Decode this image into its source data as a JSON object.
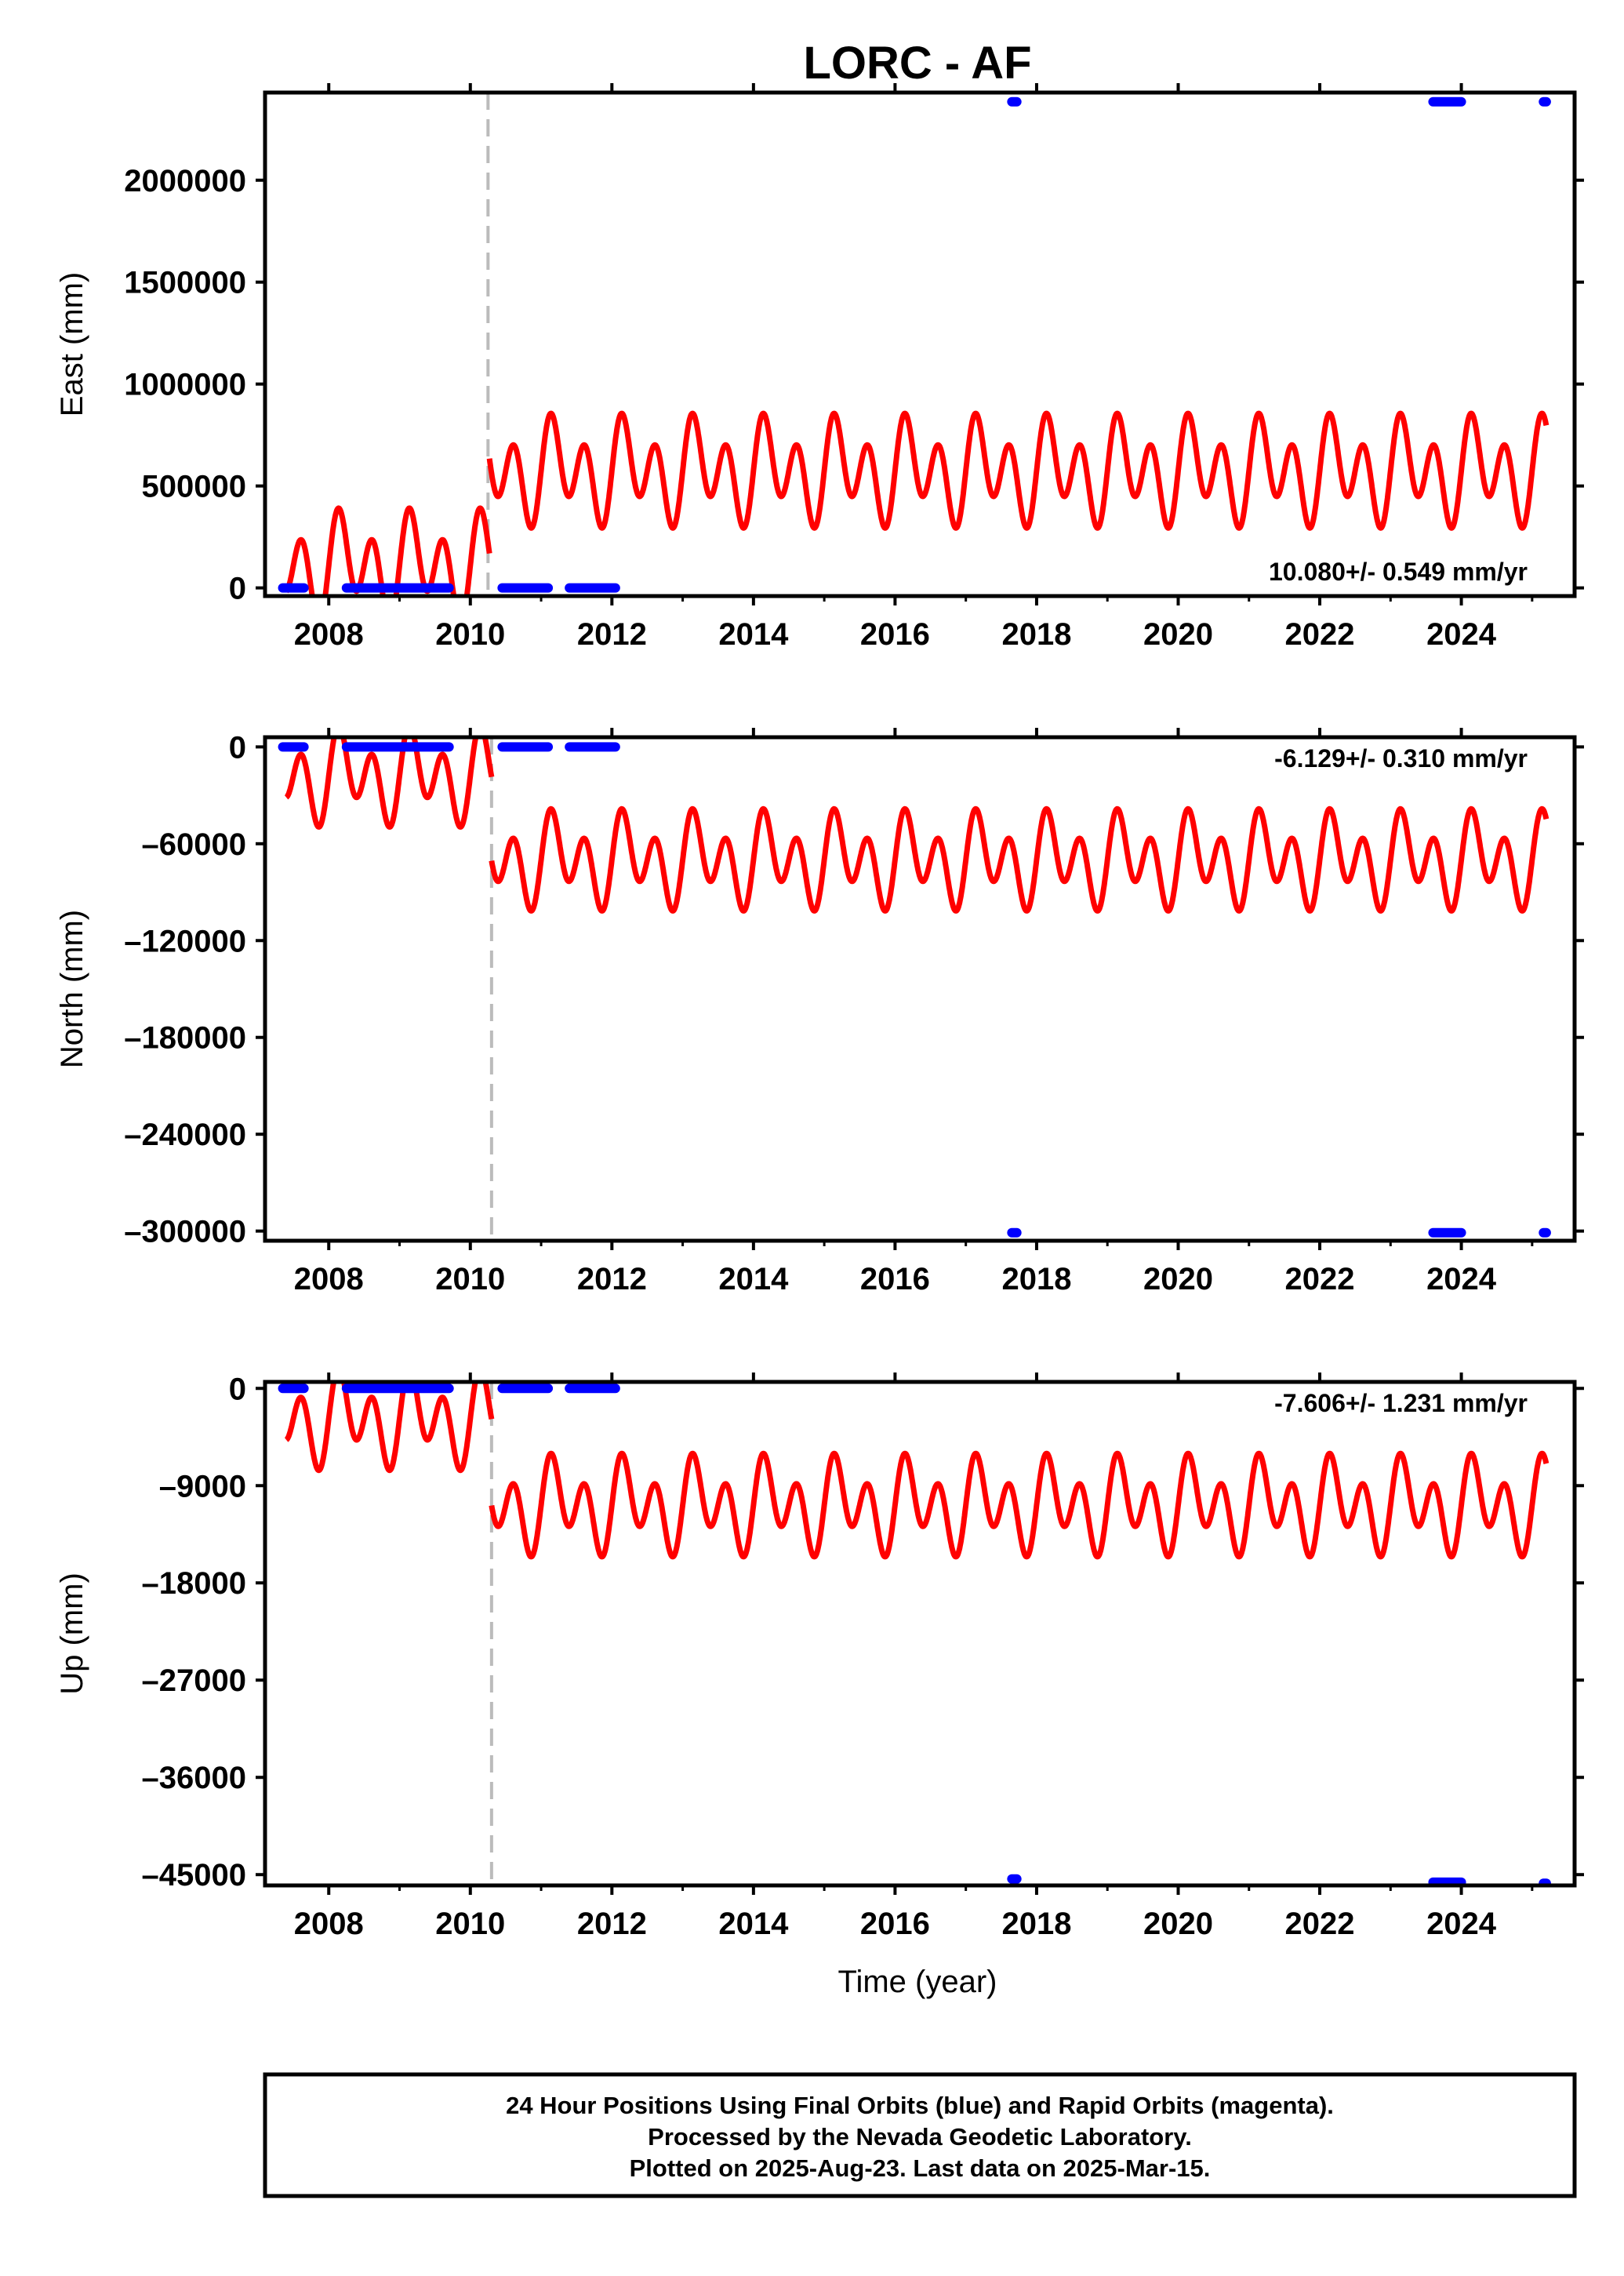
{
  "title": "LORC - AF",
  "footer": {
    "lines": [
      "24 Hour Positions Using Final Orbits (blue) and Rapid Orbits (magenta).",
      "Processed by the Nevada Geodetic Laboratory.",
      "Plotted on 2025-Aug-23. Last data on 2025-Mar-15."
    ]
  },
  "colors": {
    "model": "#ff0000",
    "final_orbits": "#0000ff",
    "break_line": "#bbbbbb",
    "frame": "#000000"
  },
  "chart_data": [
    {
      "type": "line",
      "name": "east",
      "ylabel": "East (mm)",
      "rate_label": "10.080+/- 0.549 mm/yr",
      "xlim": [
        2007.1,
        2025.6
      ],
      "ylim": [
        -40000,
        2430000
      ],
      "x_ticks": [
        "2008",
        "2010",
        "2012",
        "2014",
        "2016",
        "2018",
        "2020",
        "2022",
        "2024"
      ],
      "y_ticks": [
        {
          "value": 0,
          "label": "0"
        },
        {
          "value": 500000,
          "label": "500000"
        },
        {
          "value": 1000000,
          "label": "1000000"
        },
        {
          "value": 1500000,
          "label": "1500000"
        },
        {
          "value": 2000000,
          "label": "2000000"
        }
      ],
      "break_year": 2010.25,
      "model": {
        "segments": [
          {
            "x_start": 2007.4,
            "x_end": 2010.27,
            "mean": 110000,
            "annual_amp": 110000,
            "semiannual_amp": 200000,
            "phase": 0.0
          },
          {
            "x_start": 2010.27,
            "x_end": 2025.2,
            "mean": 575000,
            "annual_amp": 110000,
            "semiannual_amp": 200000,
            "phase": 0.0
          }
        ]
      },
      "observations": [
        {
          "x_start": 2007.35,
          "x_end": 2007.65,
          "y": 0
        },
        {
          "x_start": 2008.25,
          "x_end": 2009.7,
          "y": 0
        },
        {
          "x_start": 2010.45,
          "x_end": 2011.1,
          "y": 0
        },
        {
          "x_start": 2011.4,
          "x_end": 2012.05,
          "y": 0
        },
        {
          "x_start": 2017.65,
          "x_end": 2017.72,
          "y": 2385000
        },
        {
          "x_start": 2023.6,
          "x_end": 2024.0,
          "y": 2385000
        },
        {
          "x_start": 2025.16,
          "x_end": 2025.2,
          "y": 2385000
        }
      ]
    },
    {
      "type": "line",
      "name": "north",
      "ylabel": "North (mm)",
      "rate_label": "-6.129+/- 0.310 mm/yr",
      "xlim": [
        2007.1,
        2025.6
      ],
      "ylim": [
        -306000,
        6000
      ],
      "x_ticks": [
        "2008",
        "2010",
        "2012",
        "2014",
        "2016",
        "2018",
        "2020",
        "2022",
        "2024"
      ],
      "y_ticks": [
        {
          "value": 0,
          "label": "0"
        },
        {
          "value": -60000,
          "label": "–60000"
        },
        {
          "value": -120000,
          "label": "–120000"
        },
        {
          "value": -180000,
          "label": "–180000"
        },
        {
          "value": -240000,
          "label": "–240000"
        },
        {
          "value": -300000,
          "label": "–300000"
        }
      ],
      "break_year": 2010.3,
      "model": {
        "segments": [
          {
            "x_start": 2007.4,
            "x_end": 2010.3,
            "mean": -18000,
            "annual_amp": 13000,
            "semiannual_amp": 22000,
            "phase": 0.0
          },
          {
            "x_start": 2010.3,
            "x_end": 2025.2,
            "mean": -70000,
            "annual_amp": 13000,
            "semiannual_amp": 22000,
            "phase": 0.0
          }
        ]
      },
      "observations": [
        {
          "x_start": 2007.35,
          "x_end": 2007.65,
          "y": 0
        },
        {
          "x_start": 2008.25,
          "x_end": 2009.7,
          "y": 0
        },
        {
          "x_start": 2010.45,
          "x_end": 2011.1,
          "y": 0
        },
        {
          "x_start": 2011.4,
          "x_end": 2012.05,
          "y": 0
        },
        {
          "x_start": 2017.65,
          "x_end": 2017.72,
          "y": -301000
        },
        {
          "x_start": 2023.6,
          "x_end": 2024.0,
          "y": -301000
        },
        {
          "x_start": 2025.16,
          "x_end": 2025.2,
          "y": -301000
        }
      ]
    },
    {
      "type": "line",
      "name": "up",
      "ylabel": "Up (mm)",
      "rate_label": "-7.606+/- 1.231 mm/yr",
      "xlim": [
        2007.1,
        2025.6
      ],
      "ylim": [
        -46000,
        600
      ],
      "x_ticks": [
        "2008",
        "2010",
        "2012",
        "2014",
        "2016",
        "2018",
        "2020",
        "2022",
        "2024"
      ],
      "y_ticks": [
        {
          "value": 0,
          "label": "0"
        },
        {
          "value": -9000,
          "label": "–9000"
        },
        {
          "value": -18000,
          "label": "–18000"
        },
        {
          "value": -27000,
          "label": "–27000"
        },
        {
          "value": -36000,
          "label": "–36000"
        },
        {
          "value": -45000,
          "label": "–45000"
        }
      ],
      "break_year": 2010.3,
      "model": {
        "segments": [
          {
            "x_start": 2007.4,
            "x_end": 2010.3,
            "mean": -2800,
            "annual_amp": 2000,
            "semiannual_amp": 3300,
            "phase": 0.0
          },
          {
            "x_start": 2010.3,
            "x_end": 2025.2,
            "mean": -10800,
            "annual_amp": 2000,
            "semiannual_amp": 3300,
            "phase": 0.0
          }
        ]
      },
      "observations": [
        {
          "x_start": 2007.35,
          "x_end": 2007.65,
          "y": 0
        },
        {
          "x_start": 2008.25,
          "x_end": 2009.7,
          "y": 0
        },
        {
          "x_start": 2010.45,
          "x_end": 2011.1,
          "y": 0
        },
        {
          "x_start": 2011.4,
          "x_end": 2012.05,
          "y": 0
        },
        {
          "x_start": 2017.65,
          "x_end": 2017.72,
          "y": -45400
        },
        {
          "x_start": 2023.6,
          "x_end": 2024.0,
          "y": -45700
        },
        {
          "x_start": 2025.16,
          "x_end": 2025.2,
          "y": -45800
        }
      ]
    }
  ],
  "xlabel": "Time (year)"
}
